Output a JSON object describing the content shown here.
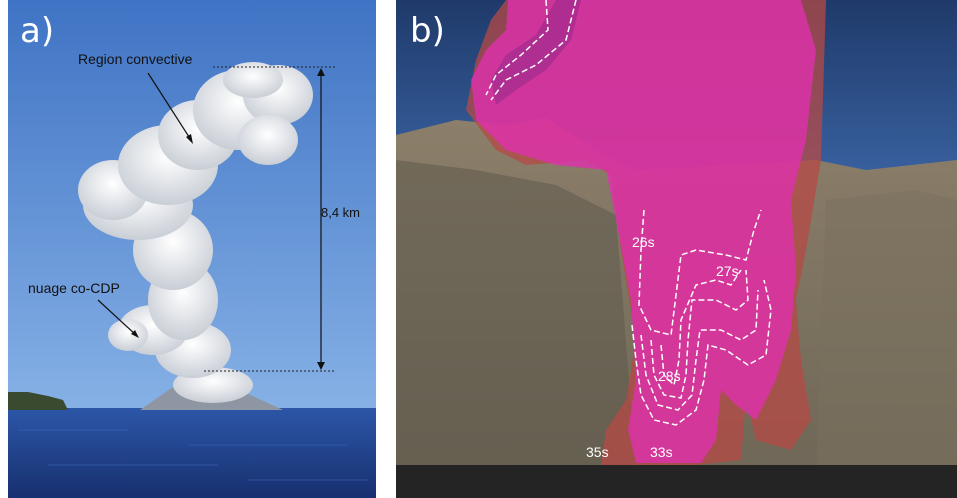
{
  "panel_a": {
    "label": "a)",
    "annotations": {
      "convective_region": "Region convective",
      "co_cloud": "nuage co-CDP",
      "height": "8,4 km"
    }
  },
  "panel_b": {
    "label": "b)",
    "time_labels": {
      "t26": "26s",
      "t27": "27s",
      "t28": "28s",
      "t35": "35s",
      "t33": "33s"
    }
  },
  "colors": {
    "sky_a": "#5b8fd6",
    "sea": "#1f3f8f",
    "plume": "#e9ecef",
    "sky_b": "#2a4b80",
    "mountain": "#8a7f6c",
    "magenta_overlay": "#e030b0",
    "brown_overlay": "#b04a40"
  }
}
